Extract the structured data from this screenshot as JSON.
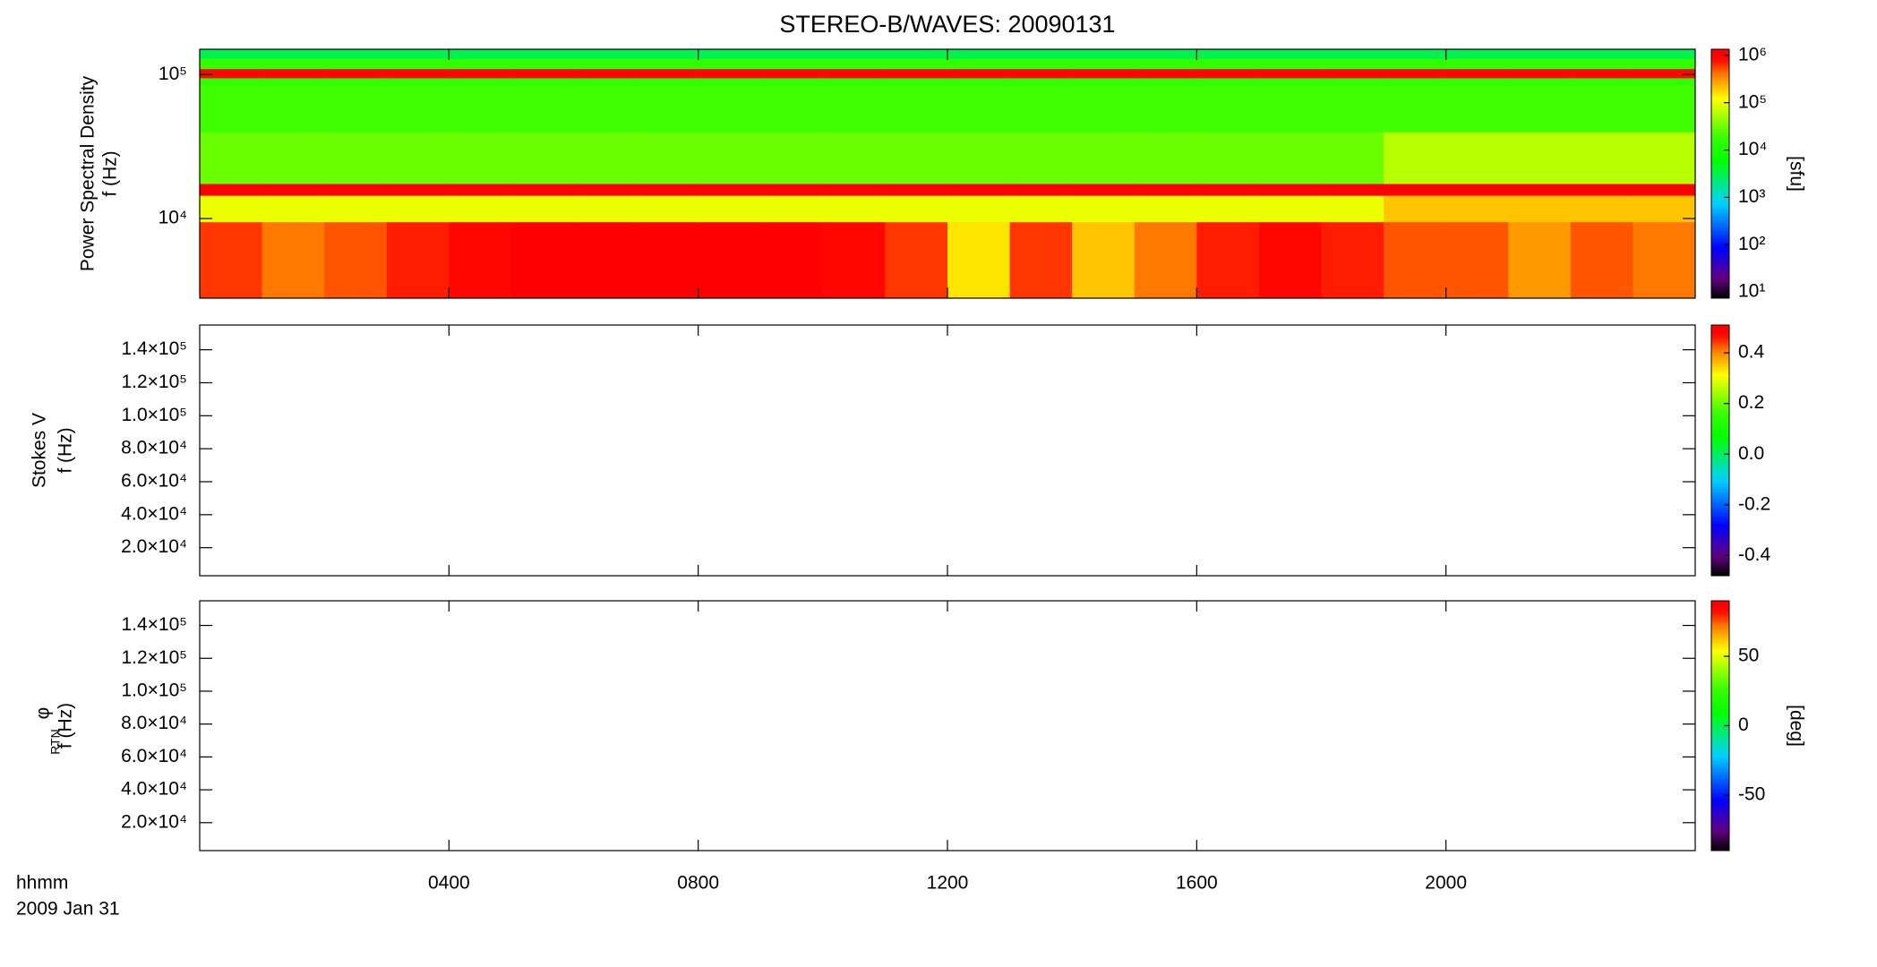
{
  "chart_data": [
    {
      "type": "heatmap",
      "title": "STEREO-B/WAVES: 20090131",
      "ylabel": [
        "Power Spectral Density",
        "f (Hz)"
      ],
      "log_y": true,
      "xlim": [
        0,
        24
      ],
      "ylim": [
        2800,
        150000
      ],
      "yticks": [
        {
          "value": 10000,
          "label": "10⁴"
        },
        {
          "value": 100000,
          "label": "10⁵"
        }
      ],
      "x_bins": [
        0,
        1,
        2,
        3,
        4,
        5,
        6,
        7,
        8,
        9,
        10,
        11,
        12,
        13,
        14,
        15,
        16,
        17,
        18,
        19,
        20,
        21,
        22,
        23,
        24
      ],
      "y_bins": [
        2800,
        9500,
        14500,
        17500,
        40000,
        85000,
        95000,
        110000,
        130000,
        150000
      ],
      "z": [
        [
          600000,
          400000,
          500000,
          700000,
          800000,
          1000000,
          1000000,
          1000000,
          1000000,
          1000000,
          800000,
          600000,
          150000,
          600000,
          200000,
          400000,
          700000,
          800000,
          700000,
          500000,
          500000,
          300000,
          500000,
          400000
        ],
        [
          100000,
          100000,
          100000,
          100000,
          100000,
          100000,
          100000,
          100000,
          100000,
          100000,
          100000,
          100000,
          100000,
          100000,
          100000,
          100000,
          100000,
          100000,
          100000,
          200000,
          200000,
          200000,
          200000,
          200000
        ],
        [
          900000,
          900000,
          900000,
          900000,
          900000,
          900000,
          900000,
          900000,
          900000,
          900000,
          900000,
          900000,
          900000,
          900000,
          900000,
          900000,
          900000,
          900000,
          900000,
          900000,
          900000,
          900000,
          900000,
          900000
        ],
        [
          30000,
          30000,
          30000,
          30000,
          30000,
          30000,
          30000,
          30000,
          30000,
          30000,
          30000,
          30000,
          30000,
          30000,
          30000,
          30000,
          30000,
          30000,
          30000,
          60000,
          60000,
          60000,
          60000,
          60000
        ],
        [
          20000,
          20000,
          20000,
          20000,
          20000,
          20000,
          20000,
          20000,
          20000,
          20000,
          20000,
          20000,
          20000,
          20000,
          20000,
          20000,
          20000,
          20000,
          20000,
          20000,
          20000,
          20000,
          20000,
          20000
        ],
        [
          15000,
          15000,
          15000,
          15000,
          15000,
          15000,
          15000,
          15000,
          15000,
          15000,
          15000,
          15000,
          15000,
          15000,
          15000,
          15000,
          15000,
          15000,
          15000,
          15000,
          15000,
          15000,
          15000,
          15000
        ],
        [
          800000,
          800000,
          800000,
          800000,
          800000,
          800000,
          800000,
          800000,
          800000,
          800000,
          800000,
          800000,
          800000,
          800000,
          800000,
          800000,
          800000,
          800000,
          800000,
          800000,
          800000,
          800000,
          800000,
          800000
        ],
        [
          15000,
          15000,
          15000,
          15000,
          15000,
          15000,
          15000,
          15000,
          15000,
          15000,
          15000,
          15000,
          15000,
          15000,
          15000,
          15000,
          15000,
          15000,
          15000,
          15000,
          15000,
          15000,
          15000,
          15000
        ],
        [
          3000,
          3000,
          3000,
          3000,
          3000,
          3000,
          3000,
          3000,
          3000,
          3000,
          3000,
          3000,
          3000,
          3000,
          3000,
          3000,
          3000,
          3000,
          3000,
          3000,
          3000,
          3000,
          3000,
          3000
        ]
      ],
      "colormap": "rainbow",
      "colorbar": {
        "log": true,
        "zlim": [
          7.4,
          1350000
        ],
        "label": "[sfu]",
        "zticks": [
          {
            "value": 10,
            "label": "10¹"
          },
          {
            "value": 100,
            "label": "10²"
          },
          {
            "value": 1000,
            "label": "10³"
          },
          {
            "value": 10000,
            "label": "10⁴"
          },
          {
            "value": 100000,
            "label": "10⁵"
          },
          {
            "value": 1000000,
            "label": "10⁶"
          }
        ]
      }
    },
    {
      "type": "heatmap",
      "ylabel": [
        "Stokes V",
        "f (Hz)"
      ],
      "log_y": false,
      "xlim": [
        0,
        24
      ],
      "ylim": [
        3000,
        155000
      ],
      "yticks": [
        {
          "value": 20000,
          "label": "2.0×10⁴"
        },
        {
          "value": 40000,
          "label": "4.0×10⁴"
        },
        {
          "value": 60000,
          "label": "6.0×10⁴"
        },
        {
          "value": 80000,
          "label": "8.0×10⁴"
        },
        {
          "value": 100000,
          "label": "1.0×10⁵"
        },
        {
          "value": 120000,
          "label": "1.2×10⁵"
        },
        {
          "value": 140000,
          "label": "1.4×10⁵"
        }
      ],
      "colormap": "rainbow",
      "colorbar": {
        "log": false,
        "zlim": [
          -0.48,
          0.51
        ],
        "zticks": [
          -0.4,
          -0.2,
          {
            "value": 0,
            "label": "0.0"
          },
          0.2,
          0.4
        ]
      }
    },
    {
      "type": "heatmap",
      "ylabel": [
        "φ",
        "f (Hz)"
      ],
      "ylabel_subscript": "RTN",
      "log_y": false,
      "xlim": [
        0,
        24
      ],
      "ylim": [
        3000,
        155000
      ],
      "yticks": [
        {
          "value": 20000,
          "label": "2.0×10⁴"
        },
        {
          "value": 40000,
          "label": "4.0×10⁴"
        },
        {
          "value": 60000,
          "label": "6.0×10⁴"
        },
        {
          "value": 80000,
          "label": "8.0×10⁴"
        },
        {
          "value": 100000,
          "label": "1.0×10⁵"
        },
        {
          "value": 120000,
          "label": "1.2×10⁵"
        },
        {
          "value": 140000,
          "label": "1.4×10⁵"
        }
      ],
      "xticks": [
        {
          "value": 4,
          "label": "0400"
        },
        {
          "value": 8,
          "label": "0800"
        },
        {
          "value": 12,
          "label": "1200"
        },
        {
          "value": 16,
          "label": "1600"
        },
        {
          "value": 20,
          "label": "2000"
        }
      ],
      "x_axis_label": "hhmm",
      "date_label": "2009 Jan 31",
      "colormap": "rainbow",
      "colorbar": {
        "log": false,
        "zlim": [
          -90,
          90
        ],
        "label": "[deg]",
        "zticks": [
          -50,
          0,
          50
        ]
      }
    }
  ]
}
